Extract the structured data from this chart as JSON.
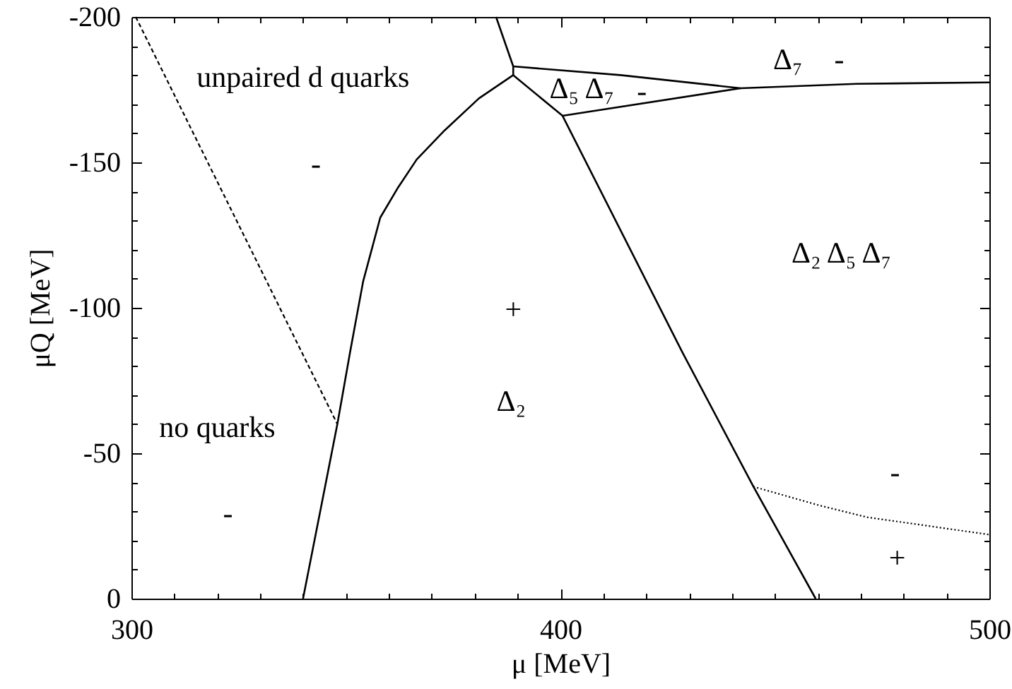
{
  "chart_data": {
    "type": "line",
    "xlabel": "μ [MeV]",
    "ylabel": "μQ [MeV]",
    "xlim": [
      300,
      500
    ],
    "ylim": [
      0,
      -200
    ],
    "xticks": [
      300,
      {
        "value": 310,
        "label": null
      },
      {
        "value": 320,
        "label": null
      },
      {
        "value": 330,
        "label": null
      },
      {
        "value": 340,
        "label": null
      },
      {
        "value": 350,
        "label": null
      },
      {
        "value": 360,
        "label": null
      },
      {
        "value": 370,
        "label": null
      },
      {
        "value": 380,
        "label": null
      },
      {
        "value": 390,
        "label": null
      },
      400,
      {
        "value": 410,
        "label": null
      },
      {
        "value": 420,
        "label": null
      },
      {
        "value": 430,
        "label": null
      },
      {
        "value": 440,
        "label": null
      },
      {
        "value": 450,
        "label": null
      },
      {
        "value": 460,
        "label": null
      },
      {
        "value": 470,
        "label": null
      },
      {
        "value": 480,
        "label": null
      },
      {
        "value": 490,
        "label": null
      },
      500
    ],
    "yticks": [
      0,
      {
        "value": -10,
        "label": null
      },
      {
        "value": -20,
        "label": null
      },
      {
        "value": -30,
        "label": null
      },
      {
        "value": -40,
        "label": null
      },
      -50,
      {
        "value": -60,
        "label": null
      },
      {
        "value": -70,
        "label": null
      },
      {
        "value": -80,
        "label": null
      },
      {
        "value": -90,
        "label": null
      },
      -100,
      {
        "value": -110,
        "label": null
      },
      {
        "value": -120,
        "label": null
      },
      {
        "value": -130,
        "label": null
      },
      {
        "value": -140,
        "label": null
      },
      -150,
      {
        "value": -160,
        "label": null
      },
      {
        "value": -170,
        "label": null
      },
      {
        "value": -180,
        "label": null
      },
      {
        "value": -190,
        "label": null
      },
      -200
    ],
    "grid": false,
    "series": [
      {
        "color": "#000000",
        "line_style": "dashed",
        "x": [
          301,
          348
        ],
        "values": [
          -200,
          -60
        ]
      },
      {
        "color": "#000000",
        "line_style": "solid",
        "x": [
          340,
          344,
          348,
          351,
          354,
          356,
          358,
          362,
          366.5,
          373,
          381,
          389
        ],
        "values": [
          0,
          -30,
          -60,
          -85,
          -109,
          -120,
          -131,
          -141,
          -151,
          -161,
          -172,
          -180
        ]
      },
      {
        "color": "#000000",
        "line_style": "solid",
        "x": [
          385,
          389,
          389
        ],
        "values": [
          -200,
          -183,
          -180
        ]
      },
      {
        "color": "#000000",
        "line_style": "solid",
        "x": [
          389,
          414,
          442,
          469,
          500
        ],
        "values": [
          -183,
          -180,
          -175.5,
          -177,
          -177.5
        ]
      },
      {
        "color": "#000000",
        "line_style": "solid",
        "x": [
          400.5,
          442
        ],
        "values": [
          -166,
          -175.5
        ]
      },
      {
        "color": "#000000",
        "line_style": "solid",
        "x": [
          389,
          400.5,
          428.5,
          445,
          459.5
        ],
        "values": [
          -180,
          -166,
          -84.5,
          -38.5,
          0
        ]
      },
      {
        "color": "#000000",
        "line_style": "dotted",
        "x": [
          445,
          460.5,
          471.5,
          500
        ],
        "values": [
          -38.5,
          -32,
          -28,
          -22
        ]
      }
    ],
    "annotations": [
      "unpaired d quarks",
      "-",
      "+",
      "Δ₂",
      "no quarks",
      "-",
      "Δ₅ Δ₇",
      "-",
      "Δ₇",
      "-",
      "Δ₂ Δ₅ Δ₇",
      "-",
      "+"
    ]
  }
}
